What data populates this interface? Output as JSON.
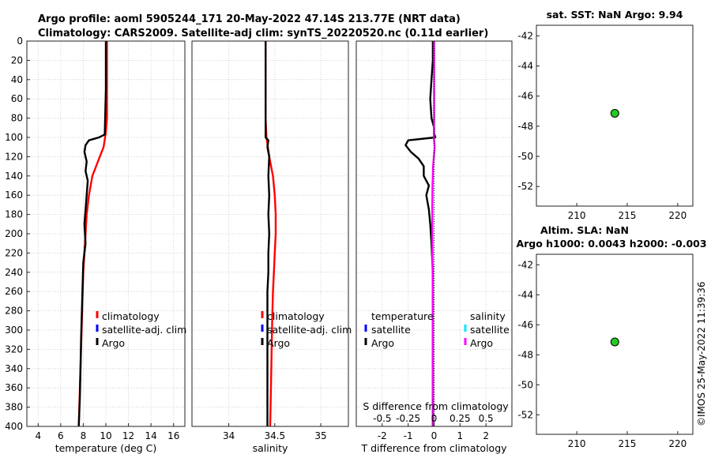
{
  "figure": {
    "title_line1": "Argo profile: aoml 5905244_171 20-May-2022 47.14S 213.77E (NRT data)",
    "title_line2": "Climatology: CARS2009. Satellite-adj clim: synTS_20220520.nc (0.11d earlier)",
    "map1_title": "sat. SST: NaN Argo: 9.94",
    "map2_title_line1": "Altim. SLA: NaN",
    "map2_title_line2": "Argo h1000: 0.0043 h2000: -0.003",
    "credit": "©IMOS 25-May-2022 11:39:36",
    "colors": {
      "climatology": "#ff0000",
      "satellite": "#0000ff",
      "argo": "#000000",
      "sat_salinity": "#00e5ff",
      "argo_salinity": "#ff00ff",
      "marker": "#22cc22"
    }
  },
  "chart_data": [
    {
      "type": "line",
      "id": "temperature",
      "xlabel": "temperature (deg C)",
      "ylabel": "",
      "xlim": [
        3,
        17
      ],
      "ylim": [
        400,
        0
      ],
      "xticks": [
        4,
        6,
        8,
        10,
        12,
        14,
        16
      ],
      "xtick_labels": [
        "4",
        "6",
        "8",
        "10",
        "12",
        "14",
        "16"
      ],
      "yticks": [
        0,
        20,
        40,
        60,
        80,
        100,
        120,
        140,
        160,
        180,
        200,
        220,
        240,
        260,
        280,
        300,
        320,
        340,
        360,
        380,
        400
      ],
      "ytick_labels": [
        "0",
        "20",
        "40",
        "60",
        "80",
        "100",
        "120",
        "140",
        "160",
        "180",
        "200",
        "220",
        "240",
        "260",
        "280",
        "300",
        "320",
        "340",
        "360",
        "380",
        "400"
      ],
      "grid": true,
      "legend": [
        "climatology",
        "satellite-adj. clim",
        "Argo"
      ],
      "series": [
        {
          "name": "climatology",
          "color": "#ff0000",
          "depth": [
            0,
            50,
            80,
            95,
            110,
            125,
            140,
            160,
            180,
            200,
            240,
            280,
            320,
            360,
            400
          ],
          "values": [
            10.1,
            10.1,
            10.1,
            10.0,
            9.8,
            9.3,
            8.8,
            8.5,
            8.3,
            8.2,
            8.0,
            7.9,
            7.8,
            7.7,
            7.6
          ]
        },
        {
          "name": "Argo",
          "color": "#000000",
          "depth": [
            0,
            50,
            97,
            100,
            103,
            108,
            115,
            125,
            135,
            145,
            160,
            175,
            190,
            210,
            230,
            250,
            270,
            290,
            310,
            340,
            370,
            400
          ],
          "values": [
            10.0,
            10.0,
            9.9,
            9.4,
            8.5,
            8.2,
            8.1,
            8.3,
            8.2,
            8.4,
            8.3,
            8.2,
            8.1,
            8.2,
            8.0,
            7.95,
            7.9,
            7.85,
            7.8,
            7.75,
            7.7,
            7.6
          ]
        }
      ]
    },
    {
      "type": "line",
      "id": "salinity",
      "xlabel": "salinity",
      "ylabel": "",
      "xlim": [
        33.6,
        35.3
      ],
      "ylim": [
        400,
        0
      ],
      "xticks": [
        34,
        34.5,
        35
      ],
      "xtick_labels": [
        "34",
        "34.5",
        "35"
      ],
      "grid": true,
      "legend": [
        "climatology",
        "satellite-adj. clim",
        "Argo"
      ],
      "series": [
        {
          "name": "climatology",
          "color": "#ff0000",
          "depth": [
            0,
            80,
            100,
            120,
            140,
            160,
            180,
            200,
            220,
            240,
            260,
            300,
            350,
            400
          ],
          "values": [
            34.4,
            34.4,
            34.41,
            34.44,
            34.48,
            34.5,
            34.51,
            34.51,
            34.5,
            34.49,
            34.48,
            34.47,
            34.46,
            34.45
          ]
        },
        {
          "name": "Argo",
          "color": "#000000",
          "depth": [
            0,
            50,
            80,
            100,
            103,
            110,
            120,
            140,
            160,
            180,
            200,
            220,
            240,
            260,
            300,
            350,
            400
          ],
          "values": [
            34.4,
            34.4,
            34.4,
            34.4,
            34.43,
            34.42,
            34.44,
            34.43,
            34.44,
            34.43,
            34.44,
            34.43,
            34.43,
            34.42,
            34.42,
            34.42,
            34.42
          ]
        }
      ]
    },
    {
      "type": "line",
      "id": "difference",
      "xlabel": "T difference from climatology",
      "top_xlabel": "S difference from climatology",
      "xlim": [
        -3,
        3
      ],
      "ylim": [
        400,
        0
      ],
      "xticks": [
        -2,
        -1,
        0,
        1,
        2
      ],
      "xtick_labels": [
        "-2",
        "-1",
        "0",
        "1",
        "2"
      ],
      "top_ticks": [
        -2,
        -1,
        0,
        1,
        2
      ],
      "top_tick_labels": [
        "-0.5",
        "-0.25",
        "0",
        "0.25",
        "0.5"
      ],
      "grid": true,
      "legend_temperature_title": "temperature",
      "legend_salinity_title": "salinity",
      "legend_temperature": [
        "satellite",
        "Argo"
      ],
      "legend_salinity": [
        "satellite",
        "Argo"
      ],
      "series": [
        {
          "name": "temperature Argo",
          "color": "#000000",
          "depth": [
            0,
            20,
            40,
            60,
            80,
            90,
            96,
            100,
            103,
            108,
            115,
            122,
            130,
            140,
            150,
            160,
            175,
            190,
            210,
            240,
            270,
            300,
            340,
            400
          ],
          "values": [
            -0.05,
            -0.05,
            -0.1,
            -0.15,
            -0.1,
            0.0,
            0.0,
            0.05,
            -1.0,
            -1.1,
            -0.9,
            -0.6,
            -0.4,
            -0.4,
            -0.2,
            -0.3,
            -0.2,
            -0.15,
            -0.1,
            -0.05,
            -0.05,
            -0.05,
            -0.05,
            -0.05
          ]
        },
        {
          "name": "salinity Argo",
          "color": "#ff00ff",
          "depth": [
            0,
            40,
            80,
            100,
            110,
            130,
            150,
            170,
            200,
            230,
            260,
            300,
            350,
            400
          ],
          "values": [
            0.0,
            0.0,
            0.0,
            -0.01,
            0.02,
            -0.04,
            -0.06,
            -0.07,
            -0.07,
            -0.06,
            -0.05,
            -0.05,
            -0.04,
            -0.03
          ]
        }
      ]
    },
    {
      "type": "scatter",
      "id": "map-sst",
      "title": "sat. SST: NaN Argo: 9.94",
      "xlim": [
        206,
        221.5
      ],
      "ylim": [
        -53.3,
        -41.3
      ],
      "xticks": [
        210,
        215,
        220
      ],
      "xtick_labels": [
        "210",
        "215",
        "220"
      ],
      "yticks": [
        -42,
        -44,
        -46,
        -48,
        -50,
        -52
      ],
      "ytick_labels": [
        "-42",
        "-44",
        "-46",
        "-48",
        "-50",
        "-52"
      ],
      "points": [
        {
          "x": 213.77,
          "y": -47.14
        }
      ]
    },
    {
      "type": "scatter",
      "id": "map-sla",
      "title": "Altim. SLA: NaN",
      "xlim": [
        206,
        221.5
      ],
      "ylim": [
        -53.3,
        -41.3
      ],
      "xticks": [
        210,
        215,
        220
      ],
      "xtick_labels": [
        "210",
        "215",
        "220"
      ],
      "yticks": [
        -42,
        -44,
        -46,
        -48,
        -50,
        -52
      ],
      "ytick_labels": [
        "-42",
        "-44",
        "-46",
        "-48",
        "-50",
        "-52"
      ],
      "points": [
        {
          "x": 213.77,
          "y": -47.14
        }
      ]
    }
  ]
}
